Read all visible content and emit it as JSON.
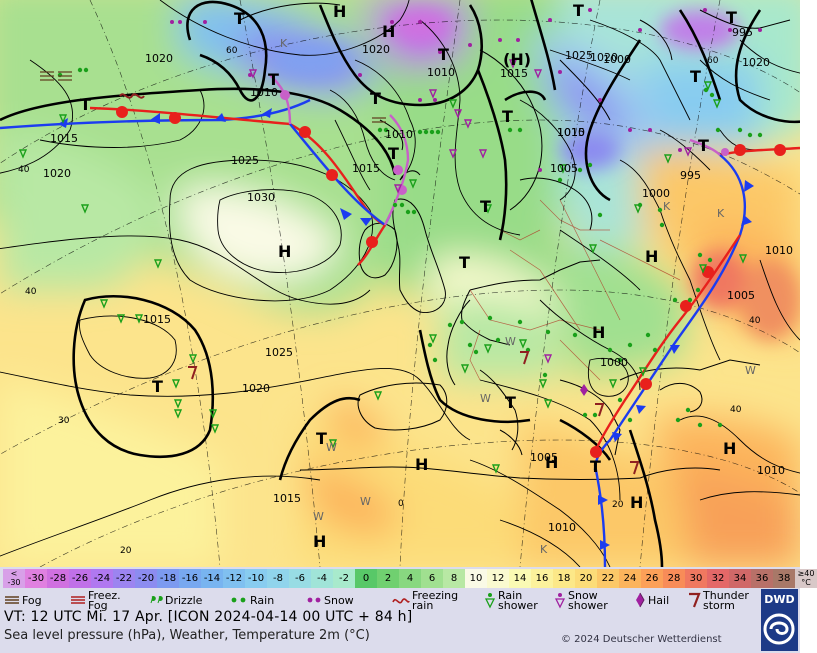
{
  "map": {
    "pressure_labels": [
      {
        "text": "1020"
      },
      {
        "text": "1015"
      },
      {
        "text": "1020"
      },
      {
        "text": "1025"
      },
      {
        "text": "1030"
      },
      {
        "text": "1015"
      },
      {
        "text": "1010"
      },
      {
        "text": "1015"
      },
      {
        "text": "1010"
      },
      {
        "text": "1020"
      },
      {
        "text": "1025"
      },
      {
        "text": "1020"
      },
      {
        "text": "1015"
      },
      {
        "text": "1010"
      },
      {
        "text": "1015"
      },
      {
        "text": "1010"
      },
      {
        "text": "1005"
      },
      {
        "text": "1000"
      },
      {
        "text": "995"
      },
      {
        "text": "1000"
      },
      {
        "text": "1020"
      },
      {
        "text": "1025"
      },
      {
        "text": "995"
      },
      {
        "text": "1010"
      },
      {
        "text": "1005"
      },
      {
        "text": "1000"
      },
      {
        "text": "1005"
      },
      {
        "text": "1010"
      },
      {
        "text": "1010"
      },
      {
        "text": "1015"
      },
      {
        "text": "1020"
      }
    ],
    "centers": [
      {
        "text": "H"
      },
      {
        "text": "H"
      },
      {
        "text": "H"
      },
      {
        "text": "H"
      },
      {
        "text": "H"
      },
      {
        "text": "H"
      },
      {
        "text": "H"
      },
      {
        "text": "H"
      },
      {
        "text": "H"
      },
      {
        "text": "H"
      },
      {
        "text": "(H)"
      },
      {
        "text": "T"
      },
      {
        "text": "T"
      },
      {
        "text": "T"
      },
      {
        "text": "T"
      },
      {
        "text": "T"
      },
      {
        "text": "T"
      },
      {
        "text": "T"
      },
      {
        "text": "T"
      },
      {
        "text": "T"
      },
      {
        "text": "T"
      },
      {
        "text": "T"
      },
      {
        "text": "T"
      },
      {
        "text": "T"
      },
      {
        "text": "T"
      },
      {
        "text": "T"
      },
      {
        "text": "T"
      },
      {
        "text": "T"
      }
    ],
    "temp_marks": [
      {
        "text": "W"
      },
      {
        "text": "W"
      },
      {
        "text": "W"
      },
      {
        "text": "W"
      },
      {
        "text": "W"
      },
      {
        "text": "W"
      },
      {
        "text": "K"
      },
      {
        "text": "K"
      },
      {
        "text": "K"
      },
      {
        "text": "K"
      }
    ],
    "graticule_labels": [
      {
        "text": "60"
      },
      {
        "text": "60"
      },
      {
        "text": "40"
      },
      {
        "text": "40"
      },
      {
        "text": "40"
      },
      {
        "text": "40"
      },
      {
        "text": "30"
      },
      {
        "text": "20"
      },
      {
        "text": "20"
      },
      {
        "text": "0"
      }
    ]
  },
  "scale": {
    "cells": [
      {
        "label": "<\n-30",
        "color": "#d8a0e8"
      },
      {
        "label": "-30",
        "color": "#e080e0"
      },
      {
        "label": "-28",
        "color": "#d070e0"
      },
      {
        "label": "-26",
        "color": "#c070e8"
      },
      {
        "label": "-24",
        "color": "#b078f0"
      },
      {
        "label": "-22",
        "color": "#9c84f0"
      },
      {
        "label": "-20",
        "color": "#8c8cf0"
      },
      {
        "label": "-18",
        "color": "#7c9af0"
      },
      {
        "label": "-16",
        "color": "#78a8f0"
      },
      {
        "label": "-14",
        "color": "#78b4f0"
      },
      {
        "label": "-12",
        "color": "#80c0f0"
      },
      {
        "label": "-10",
        "color": "#88ccf0"
      },
      {
        "label": "-8",
        "color": "#90d4ec"
      },
      {
        "label": "-6",
        "color": "#98dce4"
      },
      {
        "label": "-4",
        "color": "#a0e4d8"
      },
      {
        "label": "-2",
        "color": "#a8eacc"
      },
      {
        "label": "0",
        "color": "#58c868"
      },
      {
        "label": "2",
        "color": "#70d070"
      },
      {
        "label": "4",
        "color": "#88d880"
      },
      {
        "label": "6",
        "color": "#a0e090"
      },
      {
        "label": "8",
        "color": "#b8e8a4"
      },
      {
        "label": "10",
        "color": "#fafae6"
      },
      {
        "label": "12",
        "color": "#fafad0"
      },
      {
        "label": "14",
        "color": "#fafab4"
      },
      {
        "label": "16",
        "color": "#fcf29c"
      },
      {
        "label": "18",
        "color": "#fce888"
      },
      {
        "label": "20",
        "color": "#fcdc78"
      },
      {
        "label": "22",
        "color": "#fcc868"
      },
      {
        "label": "24",
        "color": "#fcb45c"
      },
      {
        "label": "26",
        "color": "#fca058"
      },
      {
        "label": "28",
        "color": "#f88c58"
      },
      {
        "label": "30",
        "color": "#f07860"
      },
      {
        "label": "32",
        "color": "#e46868"
      },
      {
        "label": "34",
        "color": "#d06868"
      },
      {
        "label": "36",
        "color": "#b87068"
      },
      {
        "label": "38",
        "color": "#a87868"
      },
      {
        "label": "≥40\n°C",
        "color": "#d8c8c8"
      }
    ]
  },
  "legend": {
    "items": [
      {
        "label": "Fog",
        "icon": "fog-icon"
      },
      {
        "label": "Freez.\nFog",
        "icon": "freezing-fog-icon"
      },
      {
        "label": "Drizzle",
        "icon": "drizzle-icon"
      },
      {
        "label": "Rain",
        "icon": "rain-icon"
      },
      {
        "label": "Snow",
        "icon": "snow-icon"
      },
      {
        "label": "Freezing\nrain",
        "icon": "freezing-rain-icon"
      },
      {
        "label": "Rain\nshower",
        "icon": "rain-shower-icon"
      },
      {
        "label": "Snow\nshower",
        "icon": "snow-shower-icon"
      },
      {
        "label": "Hail",
        "icon": "hail-icon"
      },
      {
        "label": "Thunder\nstorm",
        "icon": "thunderstorm-icon"
      }
    ]
  },
  "info": {
    "valid_time": "VT: 12 UTC Mi.  17 Apr. [ICON 2024-04-14  00 UTC + 84 h]",
    "description": "Sea level pressure (hPa), Weather, Temperature 2m (°C)",
    "copyright": "© 2024 Deutscher Wetterdienst",
    "logo_text": "DWD"
  },
  "colors": {
    "warm_front": "#e8201c",
    "cold_front": "#1c3cf0",
    "occlusion": "#c860c8",
    "rain_green": "#20a020",
    "snow_purple": "#a020a0",
    "footer_bg": "#dcdcec",
    "logo_bg": "#1d3a87"
  }
}
